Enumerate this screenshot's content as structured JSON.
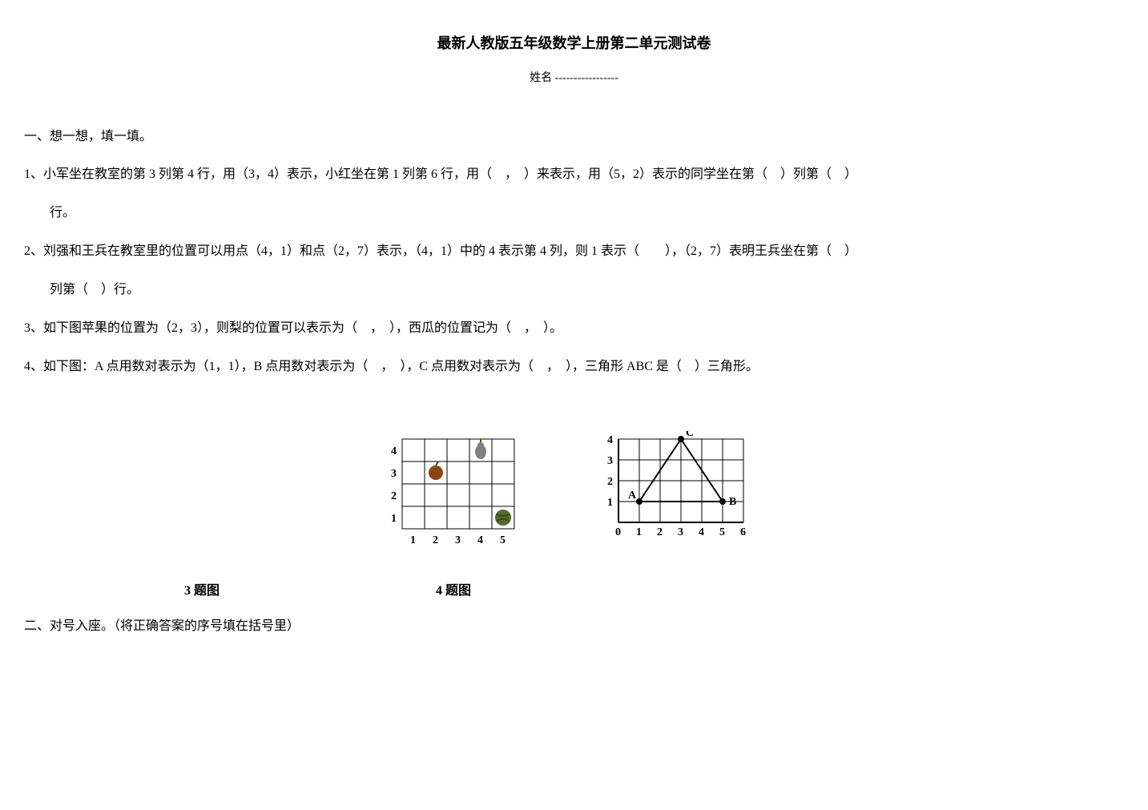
{
  "title": "最新人教版五年级数学上册第二单元测试卷",
  "name_label": "姓名 -----------------",
  "section1": "一、想一想，填一填。",
  "q1": "1、小军坐在教室的第 3 列第 4 行，用（3，4）表示，小红坐在第 1 列第 6 行，用（　，　）来表示，用（5，2）表示的同学坐在第（　）列第（　）",
  "q1_cont": "行。",
  "q2": "2、刘强和王兵在教室里的位置可以用点（4，1）和点（2，7）表示，（4，1）中的 4 表示第 4 列，则 1 表示（　　），（2，7）表明王兵坐在第（　）",
  "q2_cont": "列第（　）行。",
  "q3": "3、如下图苹果的位置为（2，3），则梨的位置可以表示为（　，　），西瓜的位置记为（　，　）。",
  "q4": "4、如下图：A 点用数对表示为（1，1），B 点用数对表示为（　，　），C 点用数对表示为（　，　），三角形 ABC 是（　）三角形。",
  "fig3_label": "3 题图",
  "fig4_label": "4 题图",
  "section2": "二、对号入座。（将正确答案的序号填在括号里）",
  "fig3": {
    "xlabels": [
      "1",
      "2",
      "3",
      "4",
      "5"
    ],
    "ylabels": [
      "1",
      "2",
      "3",
      "4"
    ],
    "apple": {
      "col": 2,
      "row": 3,
      "color": "#8b4513"
    },
    "pear": {
      "col": 4,
      "row": 4,
      "color": "#808080"
    },
    "watermelon": {
      "col": 5,
      "row": 1,
      "color": "#556b2f"
    },
    "cell_size": 28,
    "grid_color": "#000000",
    "bg": "#ffffff"
  },
  "fig4": {
    "xlabels": [
      "0",
      "1",
      "2",
      "3",
      "4",
      "5",
      "6"
    ],
    "ylabels": [
      "1",
      "2",
      "3",
      "4"
    ],
    "points": {
      "A": {
        "x": 1,
        "y": 1,
        "label": "A"
      },
      "B": {
        "x": 5,
        "y": 1,
        "label": "B"
      },
      "C": {
        "x": 3,
        "y": 4,
        "label": "C"
      }
    },
    "cell_size": 26,
    "grid_color": "#000000",
    "point_color": "#000000",
    "line_color": "#000000",
    "bg": "#ffffff"
  }
}
